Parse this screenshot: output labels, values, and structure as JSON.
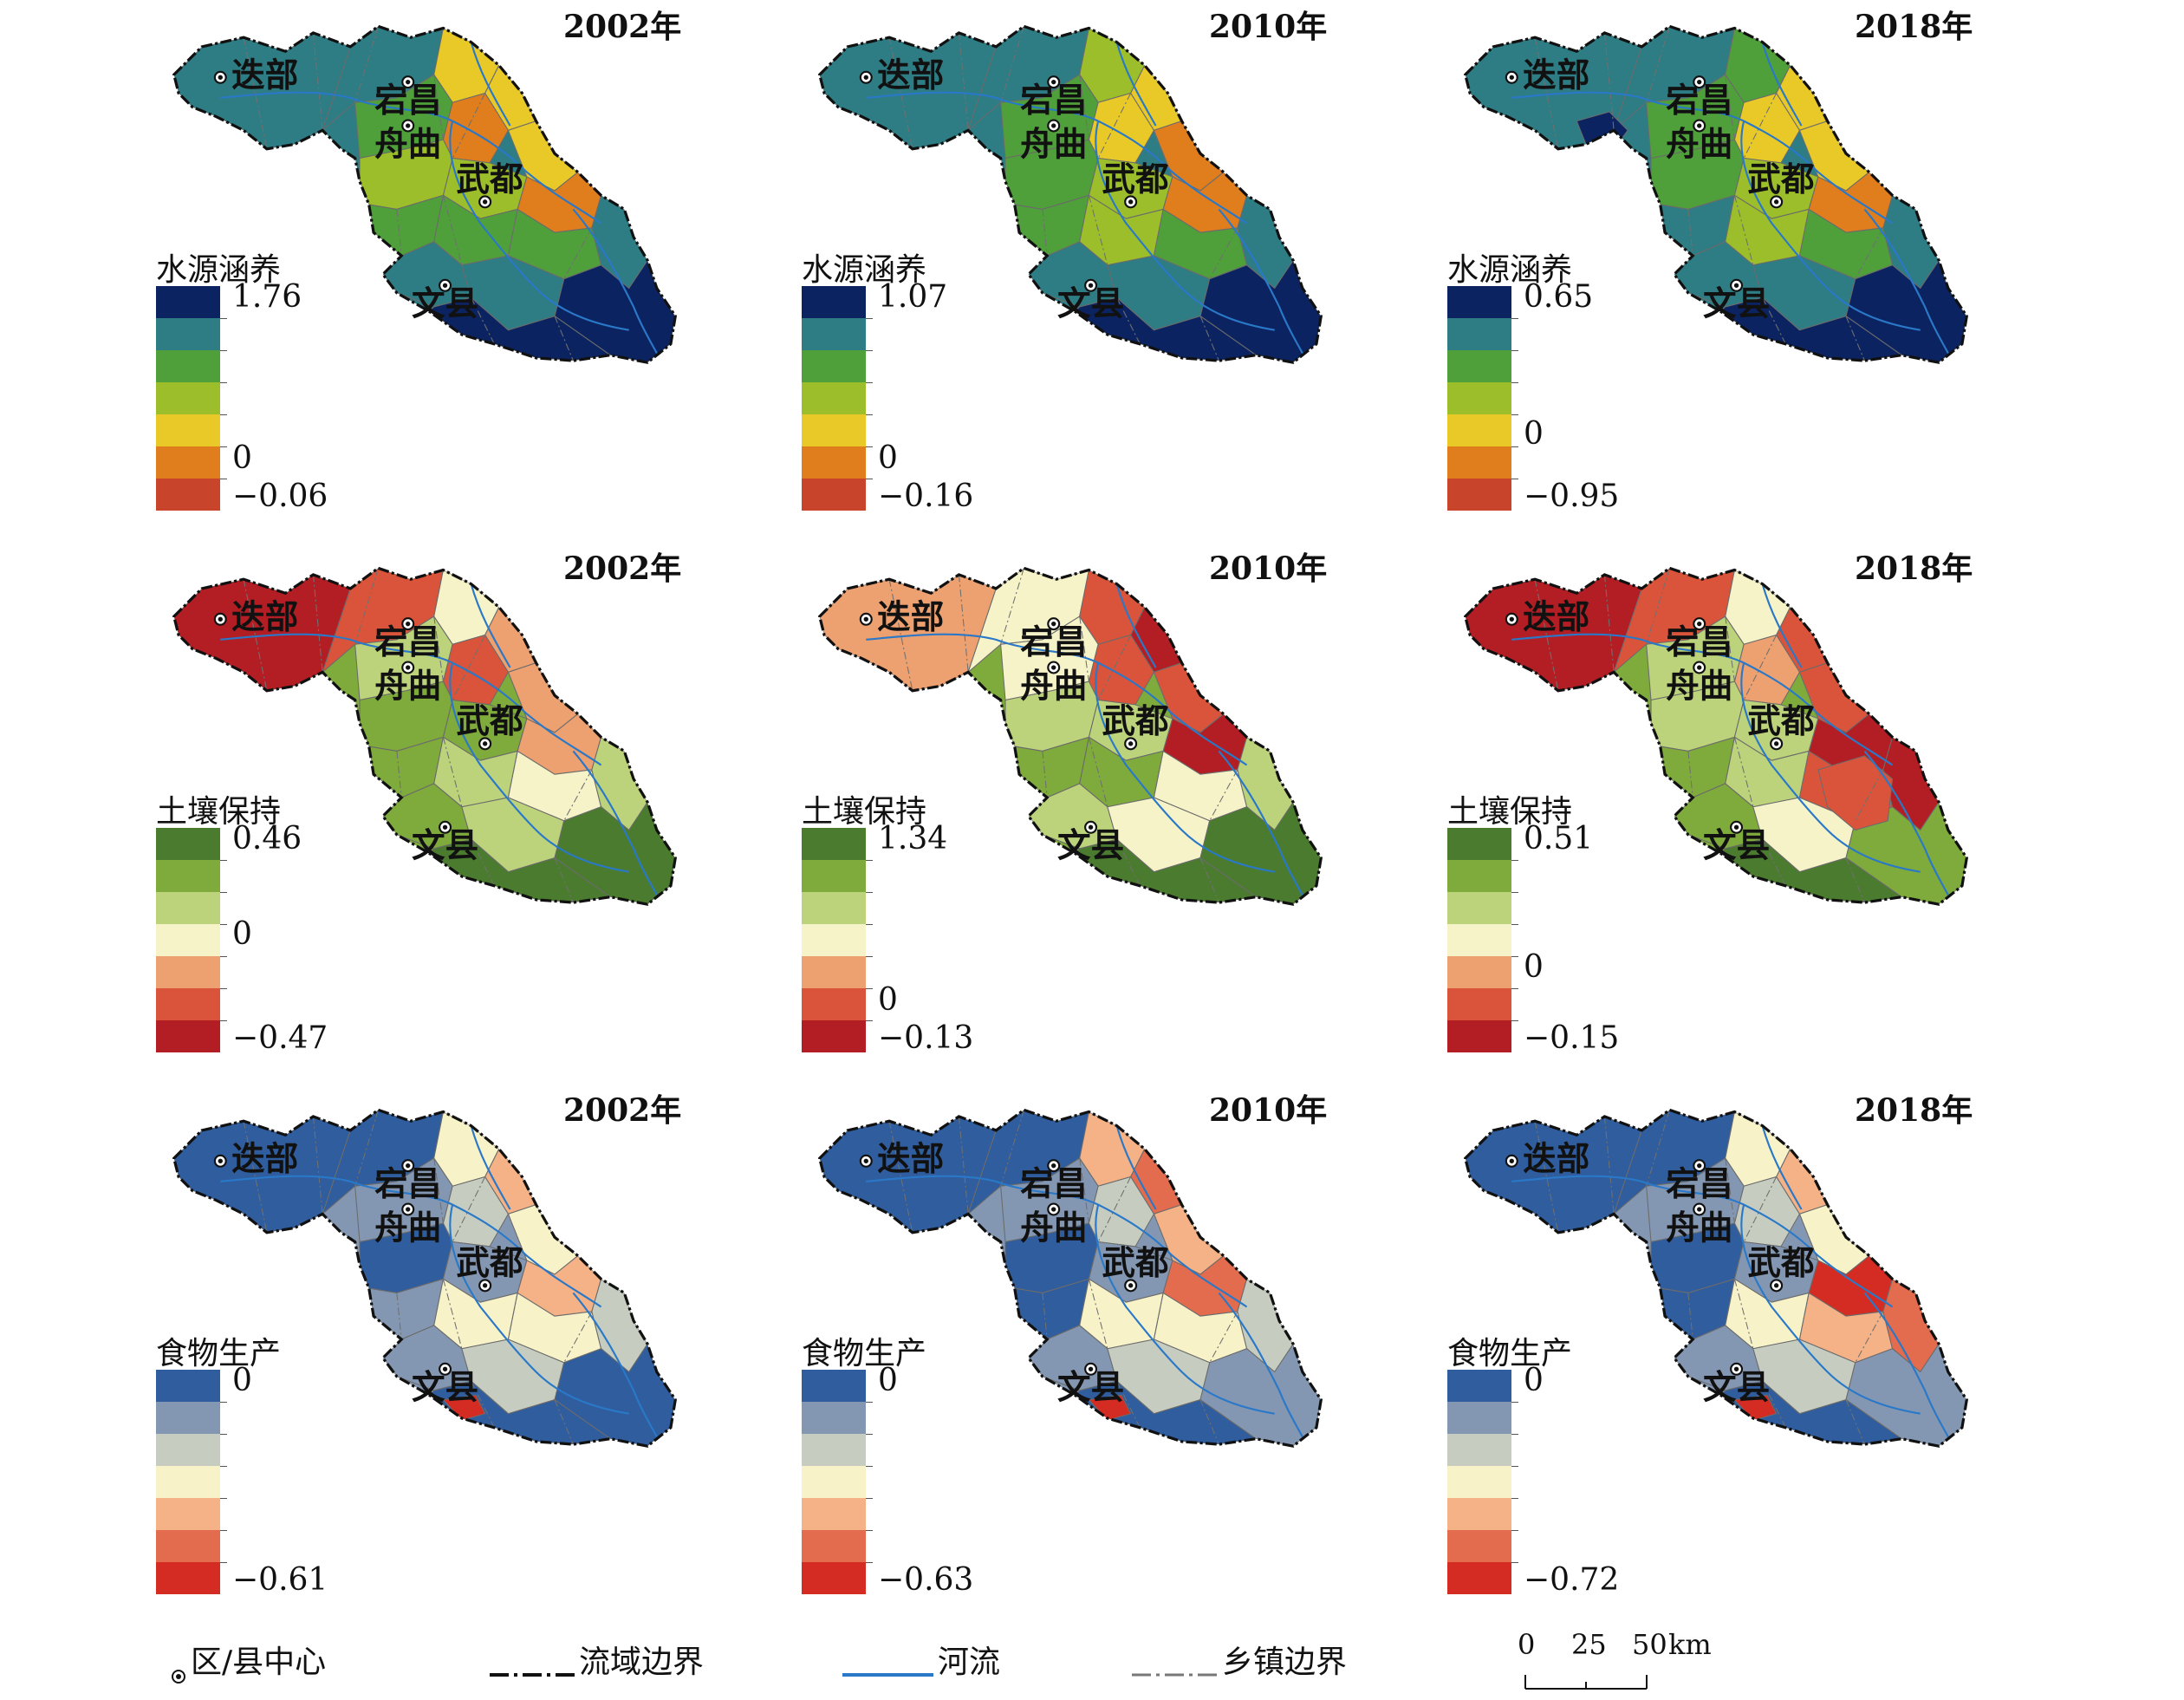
{
  "rows": [
    {
      "legend_title": "水源涵养",
      "colors": [
        "#0b2360",
        "#2e7c84",
        "#4f9f3a",
        "#9cbe2a",
        "#e8c928",
        "#e07d1d",
        "#c8452b"
      ],
      "panels": [
        {
          "year": "2002年",
          "max": "1.76",
          "zero": "0",
          "min": "−0.06"
        },
        {
          "year": "2010年",
          "max": "1.07",
          "zero": "0",
          "min": "−0.16"
        },
        {
          "year": "2018年",
          "max": "0.65",
          "zero": "0",
          "min": "−0.95"
        }
      ]
    },
    {
      "legend_title": "土壤保持",
      "colors": [
        "#4a7b2e",
        "#7faa3c",
        "#bcd37c",
        "#f6f3c8",
        "#eda070",
        "#d9543a",
        "#b21e24"
      ],
      "panels": [
        {
          "year": "2002年",
          "max": "0.46",
          "zero": "0",
          "min": "−0.47"
        },
        {
          "year": "2010年",
          "max": "1.34",
          "zero": "0",
          "min": "−0.13"
        },
        {
          "year": "2018年",
          "max": "0.51",
          "zero": "0",
          "min": "−0.15"
        }
      ]
    },
    {
      "legend_title": "食物生产",
      "colors": [
        "#2f5d9e",
        "#8497b2",
        "#c6cdc0",
        "#f8f2c8",
        "#f4b286",
        "#e36b4e",
        "#d42c22"
      ],
      "panels": [
        {
          "year": "2002年",
          "max": "0",
          "min": "−0.61"
        },
        {
          "year": "2010年",
          "max": "0",
          "min": "−0.63"
        },
        {
          "year": "2018年",
          "max": "0",
          "min": "−0.72"
        }
      ]
    }
  ],
  "cities": [
    "迭部",
    "宕昌",
    "舟曲",
    "武都",
    "文县"
  ],
  "legend_bottom": {
    "county_center": "区/县中心",
    "basin_boundary": "流域边界",
    "river": "河流",
    "town_boundary": "乡镇边界"
  },
  "scale": {
    "ticks": [
      "0",
      "25",
      "50"
    ],
    "unit": "km"
  }
}
